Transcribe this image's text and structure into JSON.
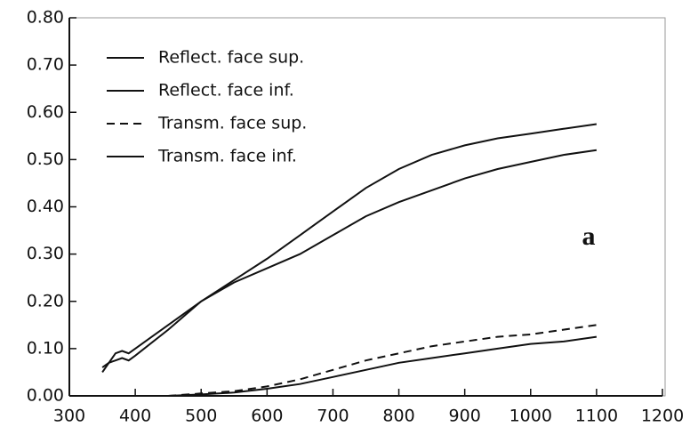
{
  "chart_data": {
    "type": "line",
    "annotation": "a",
    "x": [
      350,
      360,
      370,
      380,
      390,
      400,
      450,
      500,
      550,
      600,
      650,
      700,
      750,
      800,
      850,
      900,
      950,
      1000,
      1050,
      1100
    ],
    "series": [
      {
        "name": "Reflect. face sup.",
        "color": "#111111",
        "dash": false,
        "values": [
          0.05,
          0.07,
          0.09,
          0.095,
          0.09,
          0.1,
          0.15,
          0.2,
          0.245,
          0.29,
          0.34,
          0.39,
          0.44,
          0.48,
          0.51,
          0.53,
          0.545,
          0.555,
          0.565,
          0.575
        ]
      },
      {
        "name": "Reflect. face inf.",
        "color": "#111111",
        "dash": false,
        "values": [
          0.06,
          0.07,
          0.075,
          0.08,
          0.075,
          0.085,
          0.14,
          0.2,
          0.24,
          0.27,
          0.3,
          0.34,
          0.38,
          0.41,
          0.435,
          0.46,
          0.48,
          0.495,
          0.51,
          0.52
        ]
      },
      {
        "name": "Transm. face sup.",
        "color": "#111111",
        "dash": true,
        "values": [
          null,
          null,
          null,
          null,
          null,
          null,
          0,
          0.005,
          0.01,
          0.02,
          0.035,
          0.055,
          0.075,
          0.09,
          0.105,
          0.115,
          0.125,
          0.13,
          0.14,
          0.15
        ]
      },
      {
        "name": "Transm. face inf.",
        "color": "#111111",
        "dash": false,
        "values": [
          null,
          null,
          null,
          null,
          null,
          null,
          0,
          0.003,
          0.007,
          0.015,
          0.025,
          0.04,
          0.055,
          0.07,
          0.08,
          0.09,
          0.1,
          0.11,
          0.115,
          0.125
        ]
      }
    ],
    "xlim": [
      300,
      1200
    ],
    "xticks": [
      300,
      400,
      500,
      600,
      700,
      800,
      900,
      1000,
      1100,
      1200
    ],
    "ylim": [
      0,
      0.8
    ],
    "yticks": [
      {
        "value": 0,
        "label": "0.00"
      },
      {
        "value": 0.1,
        "label": "0.10"
      },
      {
        "value": 0.2,
        "label": "0.20"
      },
      {
        "value": 0.3,
        "label": "0.30"
      },
      {
        "value": 0.4,
        "label": "0.40"
      },
      {
        "value": 0.5,
        "label": "0.50"
      },
      {
        "value": 0.6,
        "label": "0.60"
      },
      {
        "value": 0.7,
        "label": "0.70"
      },
      {
        "value": 0.8,
        "label": "0.80"
      }
    ],
    "grid": false
  }
}
